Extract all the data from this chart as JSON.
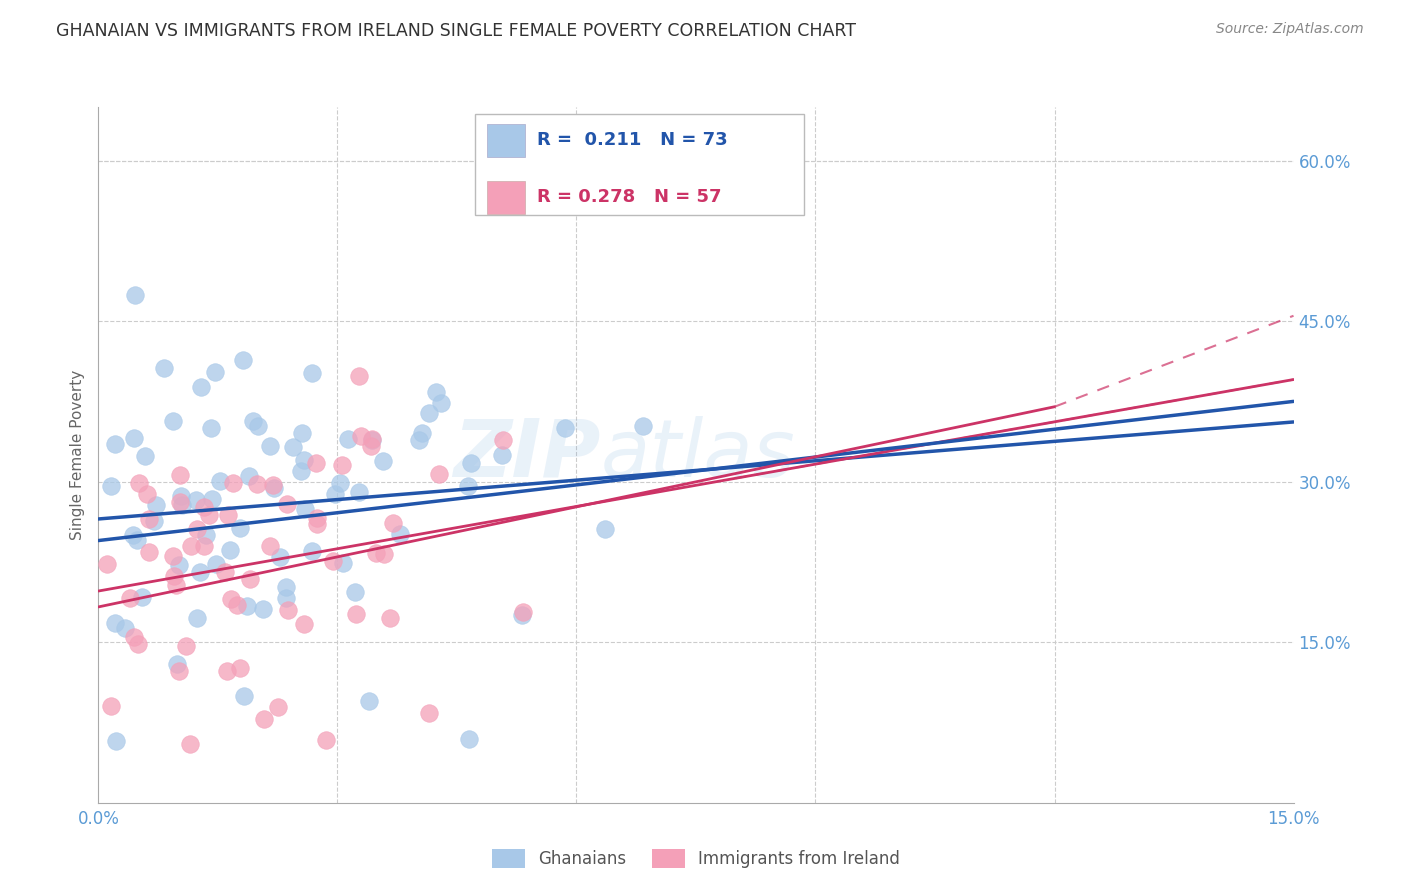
{
  "title": "GHANAIAN VS IMMIGRANTS FROM IRELAND SINGLE FEMALE POVERTY CORRELATION CHART",
  "source": "Source: ZipAtlas.com",
  "ylabel": "Single Female Poverty",
  "xlim": [
    0.0,
    0.15
  ],
  "ylim": [
    0.0,
    0.65
  ],
  "color_ghanaian": "#a8c8e8",
  "color_ireland": "#f4a0b8",
  "line_color_ghanaian": "#2255aa",
  "line_color_ireland": "#cc3366",
  "R_ghanaian": 0.211,
  "N_ghanaian": 73,
  "R_ireland": 0.278,
  "N_ireland": 57,
  "legend_label_1": "Ghanaians",
  "legend_label_2": "Immigrants from Ireland",
  "watermark_1": "ZIP",
  "watermark_2": "atlas",
  "background_color": "#ffffff",
  "seed_g": 1234,
  "seed_i": 5678
}
